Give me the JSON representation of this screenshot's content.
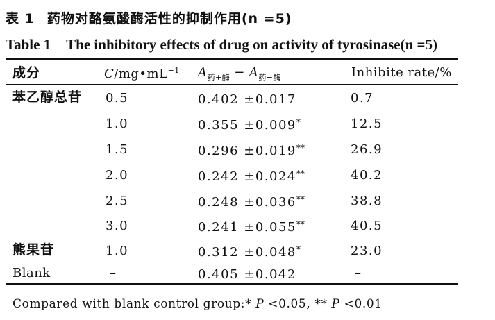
{
  "title": {
    "cn_number": "表 1",
    "cn_text": "药物对酪氨酸酶活性的抑制作用",
    "cn_n": "(n =5)",
    "en_number": "Table 1",
    "en_text": "The inhibitory effects of drug on activity of tyrosinase",
    "en_n": "(n =5)"
  },
  "headers": {
    "name": "成分",
    "conc_symbol": "C",
    "conc_unit": "/mg•mL",
    "conc_exp": "−1",
    "abs_a1": "A",
    "abs_sub1": "药+酶",
    "abs_minus": "−",
    "abs_a2": "A",
    "abs_sub2": "药−酶",
    "rate": "Inhibite rate/%"
  },
  "rows": [
    {
      "name": "苯乙醇总苷",
      "conc": "0.5",
      "abs": "0.402 ±0.017",
      "sig": "",
      "rate": "0.7"
    },
    {
      "name": "",
      "conc": "1.0",
      "abs": "0.355 ±0.009",
      "sig": "*",
      "rate": "12.5"
    },
    {
      "name": "",
      "conc": "1.5",
      "abs": "0.296 ±0.019",
      "sig": "**",
      "rate": "26.9"
    },
    {
      "name": "",
      "conc": "2.0",
      "abs": "0.242 ±0.024",
      "sig": "**",
      "rate": "40.2"
    },
    {
      "name": "",
      "conc": "2.5",
      "abs": "0.248 ±0.036",
      "sig": "**",
      "rate": "38.8"
    },
    {
      "name": "",
      "conc": "3.0",
      "abs": "0.241 ±0.055",
      "sig": "**",
      "rate": "40.5"
    },
    {
      "name": "熊果苷",
      "conc": "1.0",
      "abs": "0.312 ±0.048",
      "sig": "*",
      "rate": "23.0"
    },
    {
      "name": "Blank",
      "conc": "–",
      "abs": "0.405 ±0.042",
      "sig": "",
      "rate": "–"
    }
  ],
  "footnote": {
    "text1": "Compared with blank control group:* ",
    "p1": "P",
    "text2": " <0.05, ** ",
    "p2": "P",
    "text3": " <0.01"
  }
}
